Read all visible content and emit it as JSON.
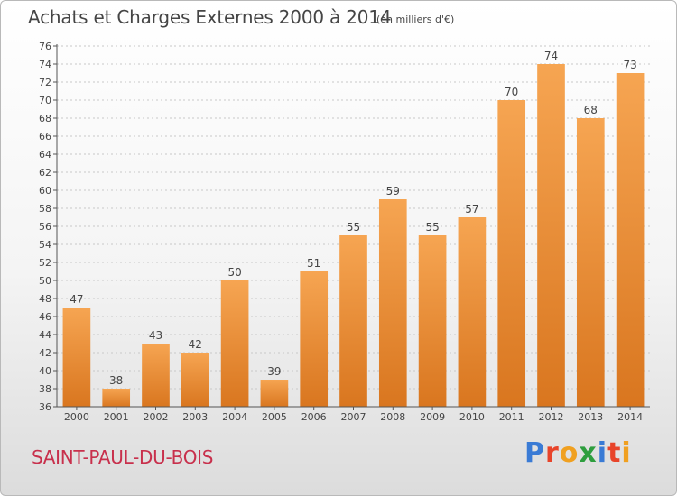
{
  "title": "Achats et Charges Externes 2000 à 2014",
  "subtitle": "(en milliers d'€)",
  "commune": "SAINT-PAUL-DU-BOIS",
  "logo": {
    "text": "Proxiti",
    "letter_colors": [
      "#3a7bd5",
      "#e8442a",
      "#f0a020",
      "#2e9e3e",
      "#3a7bd5",
      "#e8442a",
      "#f0a020"
    ]
  },
  "colors": {
    "bar_top": "#f6a552",
    "bar_bottom": "#d9761f",
    "grid": "#c8c8c8",
    "axis": "#555555",
    "text": "#454545"
  },
  "chart_data": {
    "type": "bar",
    "title": "Achats et Charges Externes 2000 à 2014",
    "subtitle": "(en milliers d'€)",
    "xlabel": "",
    "ylabel": "",
    "categories": [
      "2000",
      "2001",
      "2002",
      "2003",
      "2004",
      "2005",
      "2006",
      "2007",
      "2008",
      "2009",
      "2010",
      "2011",
      "2012",
      "2013",
      "2014"
    ],
    "values": [
      47,
      38,
      43,
      42,
      50,
      39,
      51,
      55,
      59,
      55,
      57,
      70,
      74,
      68,
      73
    ],
    "data_labels": [
      "47",
      "38",
      "43",
      "42",
      "50",
      "39",
      "51",
      "55",
      "59",
      "55",
      "57",
      "70",
      "74",
      "68",
      "73"
    ],
    "ylim": [
      36,
      76
    ],
    "yticks": [
      "36",
      "38",
      "40",
      "42",
      "44",
      "46",
      "48",
      "50",
      "52",
      "54",
      "56",
      "58",
      "60",
      "62",
      "64",
      "66",
      "68",
      "70",
      "72",
      "74",
      "76"
    ],
    "grid": true,
    "legend": "none"
  }
}
